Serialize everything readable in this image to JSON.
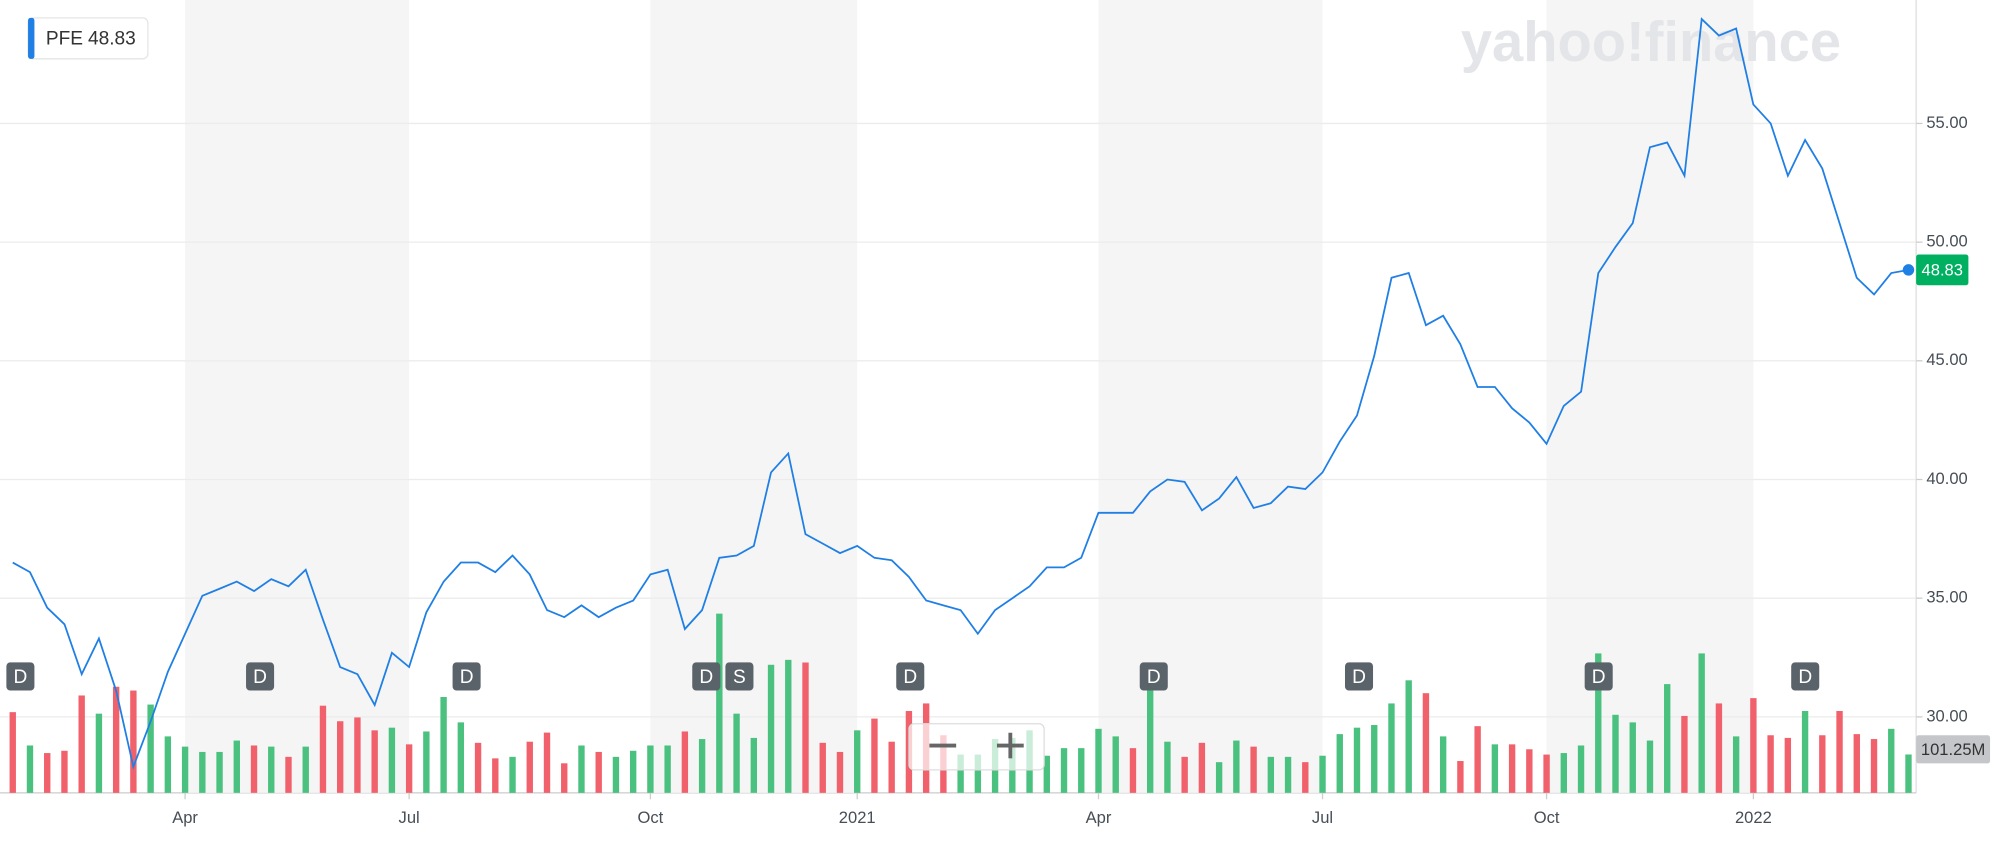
{
  "chart_data": {
    "type": "line",
    "watermark": "yahoo!finance",
    "categories": [
      null,
      null,
      null,
      null,
      null,
      null,
      null,
      null,
      null,
      null,
      "Apr",
      null,
      null,
      null,
      null,
      null,
      null,
      null,
      null,
      null,
      null,
      null,
      null,
      "Jul",
      null,
      null,
      null,
      null,
      null,
      null,
      null,
      null,
      null,
      null,
      null,
      null,
      null,
      "Oct",
      null,
      null,
      null,
      null,
      null,
      null,
      null,
      null,
      null,
      null,
      null,
      "2021",
      null,
      null,
      null,
      null,
      null,
      null,
      null,
      null,
      null,
      null,
      null,
      null,
      null,
      "Apr",
      null,
      null,
      null,
      null,
      null,
      null,
      null,
      null,
      null,
      null,
      null,
      null,
      "Jul",
      null,
      null,
      null,
      null,
      null,
      null,
      null,
      null,
      null,
      null,
      null,
      null,
      "Oct",
      null,
      null,
      null,
      null,
      null,
      null,
      null,
      null,
      null,
      null,
      null,
      "2022",
      null,
      null,
      null,
      null,
      null,
      null,
      null,
      null,
      null
    ],
    "series": [
      {
        "name": "PFE",
        "color": "#1f7fe5",
        "values": [
          36.5,
          36.1,
          34.6,
          33.9,
          31.8,
          33.3,
          31.1,
          27.9,
          29.8,
          31.9,
          33.5,
          35.1,
          35.4,
          35.7,
          35.3,
          35.8,
          35.5,
          36.2,
          34.1,
          32.1,
          31.8,
          30.5,
          32.7,
          32.1,
          34.4,
          35.7,
          36.5,
          36.5,
          36.1,
          36.8,
          36.0,
          34.5,
          34.2,
          34.7,
          34.2,
          34.6,
          34.9,
          36.0,
          36.2,
          33.7,
          34.5,
          36.7,
          36.8,
          37.2,
          40.3,
          41.1,
          37.7,
          37.3,
          36.9,
          37.2,
          36.7,
          36.6,
          35.9,
          34.9,
          34.7,
          34.5,
          33.5,
          34.5,
          35.0,
          35.5,
          36.3,
          36.3,
          36.7,
          38.6,
          38.6,
          38.6,
          39.5,
          40.0,
          39.9,
          38.7,
          39.2,
          40.1,
          38.8,
          39.0,
          39.7,
          39.6,
          40.3,
          41.6,
          42.7,
          45.2,
          48.5,
          48.7,
          46.5,
          46.9,
          45.7,
          43.9,
          43.9,
          43.0,
          42.4,
          41.5,
          43.1,
          43.7,
          48.7,
          49.8,
          50.8,
          54.0,
          54.2,
          52.8,
          59.4,
          58.7,
          59.0,
          55.8,
          55.0,
          52.8,
          54.3,
          53.1,
          50.8,
          48.5,
          47.8,
          48.7,
          48.83
        ]
      }
    ],
    "volume": {
      "values": [
        213,
        125,
        105,
        111,
        257,
        209,
        280,
        270,
        233,
        149,
        122,
        108,
        108,
        138,
        125,
        122,
        95,
        122,
        230,
        189,
        199,
        165,
        172,
        128,
        162,
        253,
        186,
        132,
        91,
        95,
        135,
        159,
        78,
        125,
        108,
        95,
        111,
        125,
        125,
        162,
        142,
        473,
        209,
        145,
        338,
        351,
        344,
        132,
        108,
        165,
        196,
        135,
        216,
        236,
        152,
        101,
        101,
        142,
        145,
        165,
        98,
        118,
        118,
        169,
        149,
        118,
        338,
        135,
        95,
        132,
        81,
        138,
        122,
        95,
        95,
        81,
        98,
        155,
        172,
        179,
        236,
        297,
        263,
        149,
        84,
        176,
        128,
        128,
        115,
        101,
        105,
        125,
        368,
        206,
        186,
        138,
        287,
        203,
        368,
        236,
        149,
        250,
        152,
        145,
        216,
        152,
        216,
        155,
        142,
        169,
        101.25
      ],
      "colors": [
        "#f0616b",
        "#4ac17f",
        "#f0616b",
        "#f0616b",
        "#f0616b",
        "#4ac17f",
        "#f0616b",
        "#f0616b",
        "#4ac17f",
        "#4ac17f",
        "#4ac17f",
        "#4ac17f",
        "#4ac17f",
        "#4ac17f",
        "#f0616b",
        "#4ac17f",
        "#f0616b",
        "#4ac17f",
        "#f0616b",
        "#f0616b",
        "#f0616b",
        "#f0616b",
        "#4ac17f",
        "#f0616b",
        "#4ac17f",
        "#4ac17f",
        "#4ac17f",
        "#f0616b",
        "#f0616b",
        "#4ac17f",
        "#f0616b",
        "#f0616b",
        "#f0616b",
        "#4ac17f",
        "#f0616b",
        "#4ac17f",
        "#4ac17f",
        "#4ac17f",
        "#4ac17f",
        "#f0616b",
        "#4ac17f",
        "#4ac17f",
        "#4ac17f",
        "#4ac17f",
        "#4ac17f",
        "#4ac17f",
        "#f0616b",
        "#f0616b",
        "#f0616b",
        "#4ac17f",
        "#f0616b",
        "#f0616b",
        "#f0616b",
        "#f0616b",
        "#f0616b",
        "#4ac17f",
        "#4ac17f",
        "#4ac17f",
        "#4ac17f",
        "#4ac17f",
        "#4ac17f",
        "#4ac17f",
        "#4ac17f",
        "#4ac17f",
        "#4ac17f",
        "#f0616b",
        "#4ac17f",
        "#4ac17f",
        "#f0616b",
        "#f0616b",
        "#4ac17f",
        "#4ac17f",
        "#f0616b",
        "#4ac17f",
        "#4ac17f",
        "#f0616b",
        "#4ac17f",
        "#4ac17f",
        "#4ac17f",
        "#4ac17f",
        "#4ac17f",
        "#4ac17f",
        "#f0616b",
        "#4ac17f",
        "#f0616b",
        "#f0616b",
        "#4ac17f",
        "#f0616b",
        "#f0616b",
        "#f0616b",
        "#4ac17f",
        "#4ac17f",
        "#4ac17f",
        "#4ac17f",
        "#4ac17f",
        "#4ac17f",
        "#4ac17f",
        "#f0616b",
        "#4ac17f",
        "#f0616b",
        "#4ac17f",
        "#f0616b",
        "#f0616b",
        "#f0616b",
        "#4ac17f",
        "#f0616b",
        "#f0616b",
        "#f0616b",
        "#f0616b",
        "#4ac17f",
        "#4ac17f"
      ],
      "last_label": "101.25M"
    },
    "events": [
      "D",
      "D",
      "D",
      "D",
      "S",
      "D",
      "D",
      "D",
      "D",
      "D"
    ],
    "ylim": [
      26.8,
      60.2
    ],
    "yticks": [
      {
        "value": 30,
        "label": "30.00"
      },
      {
        "value": 35,
        "label": "35.00"
      },
      {
        "value": 40,
        "label": "40.00"
      },
      {
        "value": 45,
        "label": "45.00"
      },
      {
        "value": 50,
        "label": "50.00"
      },
      {
        "value": 55,
        "label": "55.00"
      }
    ],
    "grid": true
  }
}
